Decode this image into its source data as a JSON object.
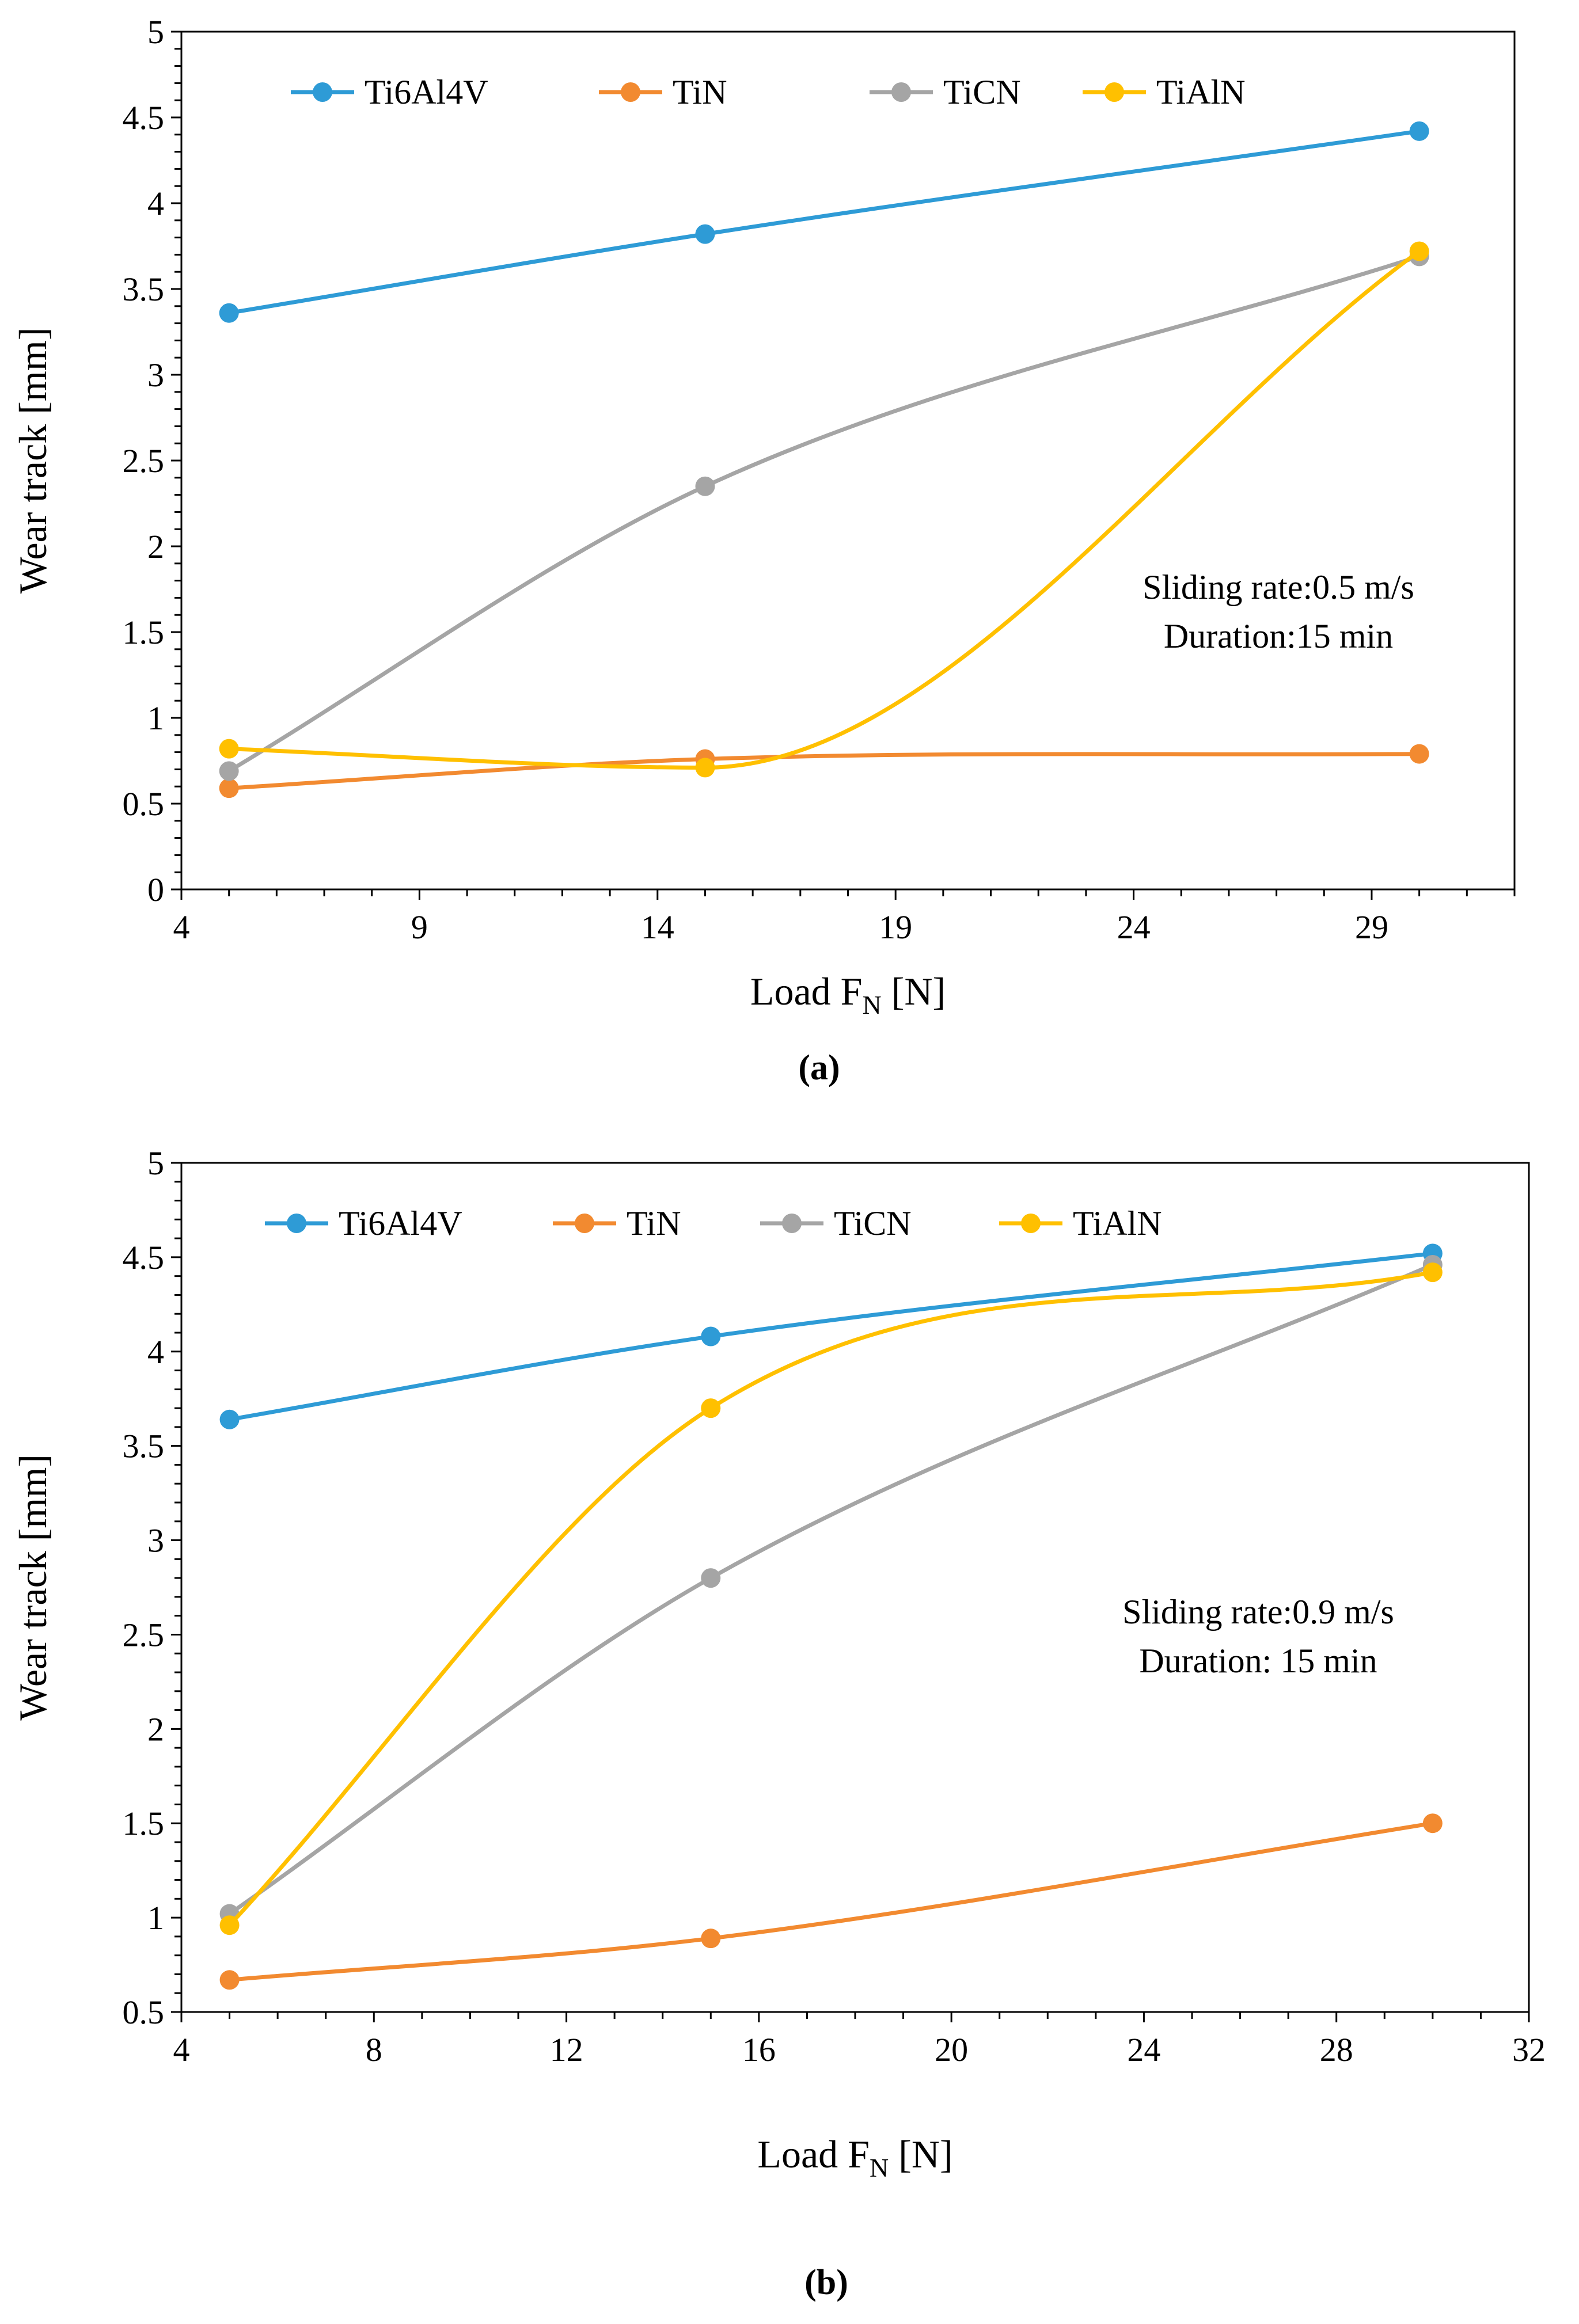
{
  "chart_data": [
    {
      "type": "line",
      "caption": "(a)",
      "xlabel_main": "Load F",
      "xlabel_sub": "N",
      "xlabel_tail": " [N]",
      "ylabel": "Wear track [mm]",
      "xlim": [
        4,
        32
      ],
      "ylim": [
        0,
        5
      ],
      "xticks": [
        4,
        9,
        14,
        19,
        24,
        29
      ],
      "xtick_labels": [
        "4",
        "9",
        "14",
        "19",
        "24",
        "29"
      ],
      "yticks": [
        0,
        0.5,
        1,
        1.5,
        2,
        2.5,
        3,
        3.5,
        4,
        4.5,
        5
      ],
      "ytick_labels": [
        "0",
        "0.5",
        "1",
        "1.5",
        "2",
        "2.5",
        "3",
        "3.5",
        "4",
        "4.5",
        "5"
      ],
      "annotation": [
        "Sliding rate:0.5 m/s",
        "Duration:15 min"
      ],
      "x": [
        5,
        15,
        30
      ],
      "series": [
        {
          "name": "Ti6Al4V",
          "color": "#2e9bd6",
          "values": [
            3.36,
            3.82,
            4.42
          ]
        },
        {
          "name": "TiN",
          "color": "#f28a30",
          "values": [
            0.59,
            0.76,
            0.79
          ]
        },
        {
          "name": "TiCN",
          "color": "#a5a5a5",
          "values": [
            0.69,
            2.35,
            3.69
          ]
        },
        {
          "name": "TiAlN",
          "color": "#ffc000",
          "values": [
            0.82,
            0.71,
            3.72
          ]
        }
      ]
    },
    {
      "type": "line",
      "caption": "(b)",
      "xlabel_main": "Load F",
      "xlabel_sub": "N",
      "xlabel_tail": " [N]",
      "ylabel": "Wear track [mm]",
      "xlim": [
        4,
        32
      ],
      "ylim": [
        0.5,
        5
      ],
      "xticks": [
        4,
        8,
        12,
        16,
        20,
        24,
        28,
        32
      ],
      "xtick_labels": [
        "4",
        "8",
        "12",
        "16",
        "20",
        "24",
        "28",
        "32"
      ],
      "yticks": [
        0.5,
        1,
        1.5,
        2,
        2.5,
        3,
        3.5,
        4,
        4.5,
        5
      ],
      "ytick_labels": [
        "0.5",
        "1",
        "1.5",
        "2",
        "2.5",
        "3",
        "3.5",
        "4",
        "4.5",
        "5"
      ],
      "annotation": [
        "Sliding rate:0.9 m/s",
        "Duration: 15 min"
      ],
      "x": [
        5,
        15,
        30
      ],
      "series": [
        {
          "name": "Ti6Al4V",
          "color": "#2e9bd6",
          "values": [
            3.64,
            4.08,
            4.52
          ]
        },
        {
          "name": "TiN",
          "color": "#f28a30",
          "values": [
            0.67,
            0.89,
            1.5
          ]
        },
        {
          "name": "TiCN",
          "color": "#a5a5a5",
          "values": [
            1.02,
            2.8,
            4.46
          ]
        },
        {
          "name": "TiAlN",
          "color": "#ffc000",
          "values": [
            0.96,
            3.7,
            4.42
          ]
        }
      ]
    }
  ]
}
